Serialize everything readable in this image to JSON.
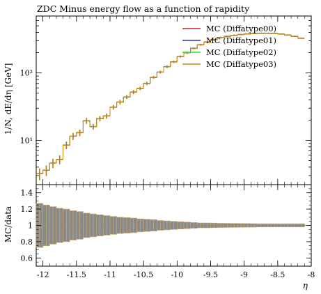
{
  "chart_data": {
    "type": "scatter",
    "title": "ZDC Minus energy flow as a function of rapidity",
    "xlabel": "η",
    "ylabel": "1/N, dE/dη [GeV]",
    "ratio_ylabel": "MC/data",
    "x_tick_labels": [
      "-12",
      "-11.5",
      "-11",
      "-10.5",
      "-10",
      "-9.5",
      "-9",
      "-8.5",
      "-8"
    ],
    "y_tick_labels": [
      "10¹",
      "10²"
    ],
    "ratio_tick_labels": [
      "0.6",
      "0.8",
      "1",
      "1.2",
      "1.4"
    ],
    "xlim": [
      -12.1,
      -8.0
    ],
    "ylim": [
      2.2,
      700
    ],
    "yscale": "log",
    "ratio_ylim": [
      0.5,
      1.5
    ],
    "legend_position": "top-right",
    "series": [
      {
        "name": "MC (Diffatype00)",
        "color": "#cc2222"
      },
      {
        "name": "MC (Diffatype01)",
        "color": "#2233cc"
      },
      {
        "name": "MC (Diffatype02)",
        "color": "#33dd33"
      },
      {
        "name": "MC (Diffatype03)",
        "color": "#cc8811"
      }
    ],
    "data_points": {
      "x": [
        -12.05,
        -11.95,
        -11.85,
        -11.75,
        -11.65,
        -11.55,
        -11.45,
        -11.35,
        -11.25,
        -11.15,
        -11.05,
        -10.95,
        -10.85,
        -10.75,
        -10.65,
        -10.55,
        -10.45,
        -10.35,
        -10.25,
        -10.15,
        -10.05,
        -9.95,
        -9.85,
        -9.75,
        -9.65,
        -9.55,
        -9.45,
        -9.35,
        -9.25,
        -9.15,
        -9.05,
        -8.95,
        -8.85,
        -8.75,
        -8.65,
        -8.55,
        -8.45,
        -8.35,
        -8.25,
        -8.15
      ],
      "y": [
        3.2,
        3.6,
        4.6,
        5.2,
        8.5,
        11.5,
        13,
        19.5,
        16,
        21,
        23,
        31,
        37,
        44,
        52,
        59,
        70,
        86,
        103,
        124,
        146,
        175,
        200,
        232,
        262,
        288,
        312,
        335,
        350,
        362,
        372,
        380,
        385,
        388,
        388,
        385,
        378,
        366,
        350,
        328
      ],
      "yerr_rel": [
        0.2,
        0.18,
        0.16,
        0.15,
        0.13,
        0.12,
        0.11,
        0.1,
        0.1,
        0.09,
        0.09,
        0.08,
        0.08,
        0.07,
        0.07,
        0.06,
        0.06,
        0.05,
        0.05,
        0.05,
        0.04,
        0.04,
        0.04,
        0.035,
        0.03,
        0.03,
        0.03,
        0.03,
        0.025,
        0.025,
        0.025,
        0.02,
        0.02,
        0.02,
        0.02,
        0.02,
        0.02,
        0.02,
        0.02,
        0.02
      ]
    },
    "ratio_band_halfwidth": [
      0.27,
      0.25,
      0.23,
      0.21,
      0.2,
      0.18,
      0.17,
      0.15,
      0.14,
      0.13,
      0.12,
      0.11,
      0.1,
      0.095,
      0.09,
      0.08,
      0.075,
      0.07,
      0.06,
      0.055,
      0.05,
      0.045,
      0.04,
      0.035,
      0.03,
      0.03,
      0.028,
      0.026,
      0.025,
      0.024,
      0.023,
      0.022,
      0.021,
      0.02,
      0.02,
      0.02,
      0.02,
      0.02,
      0.02,
      0.02
    ]
  }
}
